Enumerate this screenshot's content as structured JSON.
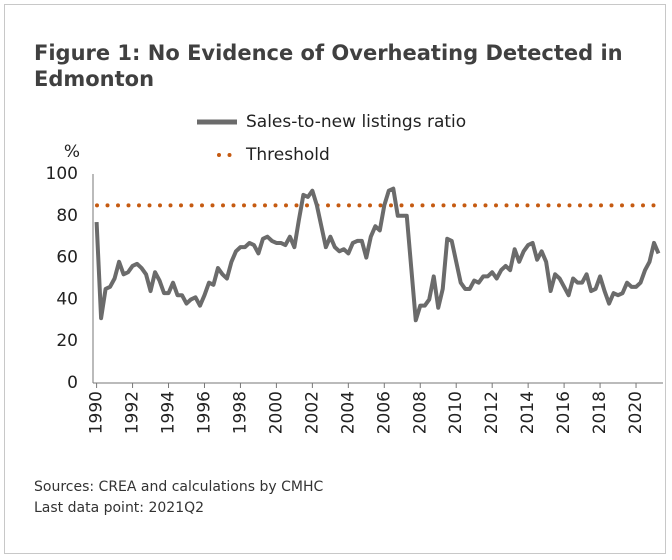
{
  "chart_data": {
    "type": "line",
    "title": "Figure 1: No Evidence of Overheating Detected in Edmonton",
    "y_label": "%",
    "x": [
      1990,
      1990.25,
      1990.5,
      1990.75,
      1991,
      1991.25,
      1991.5,
      1991.75,
      1992,
      1992.25,
      1992.5,
      1992.75,
      1993,
      1993.25,
      1993.5,
      1993.75,
      1994,
      1994.25,
      1994.5,
      1994.75,
      1995,
      1995.25,
      1995.5,
      1995.75,
      1996,
      1996.25,
      1996.5,
      1996.75,
      1997,
      1997.25,
      1997.5,
      1997.75,
      1998,
      1998.25,
      1998.5,
      1998.75,
      1999,
      1999.25,
      1999.5,
      1999.75,
      2000,
      2000.25,
      2000.5,
      2000.75,
      2001,
      2001.25,
      2001.5,
      2001.75,
      2002,
      2002.25,
      2002.5,
      2002.75,
      2003,
      2003.25,
      2003.5,
      2003.75,
      2004,
      2004.25,
      2004.5,
      2004.75,
      2005,
      2005.25,
      2005.5,
      2005.75,
      2006,
      2006.25,
      2006.5,
      2006.75,
      2007,
      2007.25,
      2007.5,
      2007.75,
      2008,
      2008.25,
      2008.5,
      2008.75,
      2009,
      2009.25,
      2009.5,
      2009.75,
      2010,
      2010.25,
      2010.5,
      2010.75,
      2011,
      2011.25,
      2011.5,
      2011.75,
      2012,
      2012.25,
      2012.5,
      2012.75,
      2013,
      2013.25,
      2013.5,
      2013.75,
      2014,
      2014.25,
      2014.5,
      2014.75,
      2015,
      2015.25,
      2015.5,
      2015.75,
      2016,
      2016.25,
      2016.5,
      2016.75,
      2017,
      2017.25,
      2017.5,
      2017.75,
      2018,
      2018.25,
      2018.5,
      2018.75,
      2019,
      2019.25,
      2019.5,
      2019.75,
      2020,
      2020.25,
      2020.5,
      2020.75,
      2021,
      2021.25
    ],
    "series": [
      {
        "name": "Sales-to-new listings ratio",
        "color": "#6b6b6b",
        "values": [
          77,
          31,
          45,
          46,
          50,
          58,
          52,
          53,
          56,
          57,
          55,
          52,
          44,
          53,
          49,
          43,
          43,
          48,
          42,
          42,
          38,
          40,
          41,
          37,
          42,
          48,
          47,
          55,
          52,
          50,
          58,
          63,
          65,
          65,
          67,
          66,
          62,
          69,
          70,
          68,
          67,
          67,
          66,
          70,
          65,
          78,
          90,
          89,
          92,
          85,
          75,
          65,
          70,
          65,
          63,
          64,
          62,
          67,
          68,
          68,
          60,
          70,
          75,
          73,
          85,
          92,
          93,
          80,
          80,
          80,
          55,
          30,
          37,
          37,
          40,
          51,
          36,
          45,
          69,
          68,
          58,
          48,
          45,
          45,
          49,
          48,
          51,
          51,
          53,
          50,
          54,
          56,
          54,
          64,
          58,
          63,
          66,
          67,
          59,
          63,
          58,
          44,
          52,
          50,
          46,
          42,
          50,
          48,
          48,
          52,
          44,
          45,
          51,
          44,
          38,
          43,
          42,
          43,
          48,
          46,
          46,
          48,
          54,
          58,
          67,
          62
        ]
      }
    ],
    "threshold": {
      "name": "Threshold",
      "value": 85,
      "color": "#c55a11"
    },
    "xlim": [
      1989.8,
      2021.5
    ],
    "xticks": [
      1990,
      1992,
      1994,
      1996,
      1998,
      2000,
      2002,
      2004,
      2006,
      2008,
      2010,
      2012,
      2014,
      2016,
      2018,
      2020
    ],
    "ylim": [
      0,
      100
    ],
    "yticks": [
      0,
      20,
      40,
      60,
      80,
      100
    ],
    "notes": [
      "Sources: CREA and calculations by CMHC",
      "Last data point: 2021Q2"
    ]
  }
}
